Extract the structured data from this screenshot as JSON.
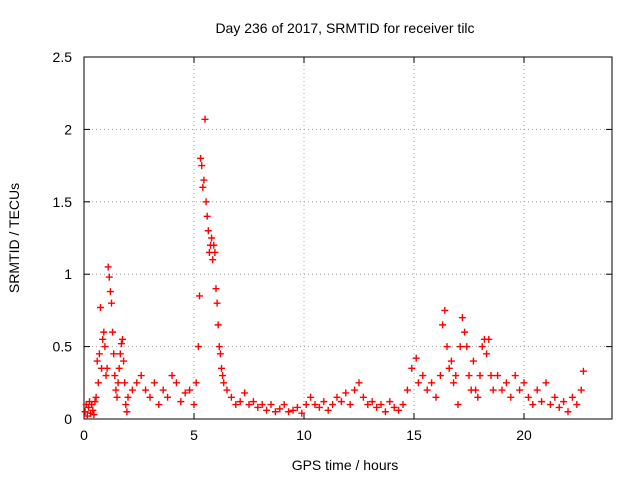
{
  "chart_data": {
    "type": "scatter",
    "title": "Day 236 of 2017, SRMTID for receiver tilc",
    "xlabel": "GPS time / hours",
    "ylabel": "SRMTID / TECUs",
    "xlim": [
      0,
      24
    ],
    "ylim": [
      0,
      2.5
    ],
    "xticks": [
      0,
      5,
      10,
      15,
      20
    ],
    "xtick_labels": [
      "0",
      "5",
      "10",
      "15",
      "20"
    ],
    "yticks": [
      0,
      0.5,
      1,
      1.5,
      2,
      2.5
    ],
    "ytick_labels": [
      "0",
      "0.5",
      "1",
      "1.5",
      "2",
      "2.5"
    ],
    "grid": true,
    "marker": "+",
    "colors": {
      "points": "#ff0000",
      "grid": "#a0a0a0",
      "axes": "#000000"
    },
    "series": [
      {
        "name": "SRMTID",
        "points": [
          [
            0.05,
            0.05
          ],
          [
            0.1,
            0.1
          ],
          [
            0.15,
            0.02
          ],
          [
            0.2,
            0.08
          ],
          [
            0.25,
            0.12
          ],
          [
            0.3,
            0.04
          ],
          [
            0.35,
            0.1
          ],
          [
            0.4,
            0.06
          ],
          [
            0.45,
            0.03
          ],
          [
            0.5,
            0.12
          ],
          [
            0.55,
            0.15
          ],
          [
            0.6,
            0.4
          ],
          [
            0.65,
            0.25
          ],
          [
            0.7,
            0.45
          ],
          [
            0.75,
            0.77
          ],
          [
            0.8,
            0.35
          ],
          [
            0.85,
            0.55
          ],
          [
            0.9,
            0.6
          ],
          [
            0.95,
            0.5
          ],
          [
            1.0,
            0.3
          ],
          [
            1.05,
            0.35
          ],
          [
            1.1,
            1.05
          ],
          [
            1.15,
            0.98
          ],
          [
            1.2,
            0.88
          ],
          [
            1.25,
            0.8
          ],
          [
            1.3,
            0.6
          ],
          [
            1.35,
            0.45
          ],
          [
            1.4,
            0.3
          ],
          [
            1.45,
            0.2
          ],
          [
            1.5,
            0.15
          ],
          [
            1.55,
            0.25
          ],
          [
            1.6,
            0.35
          ],
          [
            1.65,
            0.45
          ],
          [
            1.7,
            0.52
          ],
          [
            1.75,
            0.55
          ],
          [
            1.8,
            0.4
          ],
          [
            1.85,
            0.25
          ],
          [
            1.9,
            0.1
          ],
          [
            1.95,
            0.05
          ],
          [
            2.0,
            0.15
          ],
          [
            2.2,
            0.2
          ],
          [
            2.4,
            0.25
          ],
          [
            2.6,
            0.3
          ],
          [
            2.8,
            0.2
          ],
          [
            3.0,
            0.15
          ],
          [
            3.2,
            0.25
          ],
          [
            3.4,
            0.1
          ],
          [
            3.6,
            0.2
          ],
          [
            3.8,
            0.15
          ],
          [
            4.0,
            0.3
          ],
          [
            4.2,
            0.25
          ],
          [
            4.4,
            0.12
          ],
          [
            4.6,
            0.18
          ],
          [
            4.8,
            0.2
          ],
          [
            5.0,
            0.1
          ],
          [
            5.1,
            0.25
          ],
          [
            5.2,
            0.5
          ],
          [
            5.25,
            0.85
          ],
          [
            5.3,
            1.8
          ],
          [
            5.35,
            1.75
          ],
          [
            5.4,
            1.6
          ],
          [
            5.45,
            1.65
          ],
          [
            5.5,
            2.07
          ],
          [
            5.55,
            1.5
          ],
          [
            5.6,
            1.4
          ],
          [
            5.65,
            1.3
          ],
          [
            5.7,
            1.15
          ],
          [
            5.75,
            1.2
          ],
          [
            5.8,
            1.25
          ],
          [
            5.85,
            1.1
          ],
          [
            5.9,
            1.2
          ],
          [
            5.95,
            1.15
          ],
          [
            6.0,
            0.9
          ],
          [
            6.05,
            0.8
          ],
          [
            6.1,
            0.65
          ],
          [
            6.15,
            0.5
          ],
          [
            6.2,
            0.45
          ],
          [
            6.25,
            0.35
          ],
          [
            6.3,
            0.3
          ],
          [
            6.35,
            0.25
          ],
          [
            6.5,
            0.2
          ],
          [
            6.7,
            0.15
          ],
          [
            6.9,
            0.1
          ],
          [
            7.1,
            0.12
          ],
          [
            7.3,
            0.18
          ],
          [
            7.5,
            0.1
          ],
          [
            7.7,
            0.12
          ],
          [
            7.9,
            0.08
          ],
          [
            8.1,
            0.1
          ],
          [
            8.3,
            0.06
          ],
          [
            8.5,
            0.1
          ],
          [
            8.7,
            0.05
          ],
          [
            8.9,
            0.07
          ],
          [
            9.1,
            0.1
          ],
          [
            9.3,
            0.05
          ],
          [
            9.5,
            0.06
          ],
          [
            9.7,
            0.08
          ],
          [
            9.9,
            0.04
          ],
          [
            10.1,
            0.1
          ],
          [
            10.3,
            0.15
          ],
          [
            10.5,
            0.1
          ],
          [
            10.7,
            0.08
          ],
          [
            10.9,
            0.12
          ],
          [
            11.1,
            0.06
          ],
          [
            11.3,
            0.1
          ],
          [
            11.5,
            0.15
          ],
          [
            11.7,
            0.12
          ],
          [
            11.9,
            0.18
          ],
          [
            12.1,
            0.1
          ],
          [
            12.3,
            0.2
          ],
          [
            12.5,
            0.25
          ],
          [
            12.7,
            0.15
          ],
          [
            12.9,
            0.1
          ],
          [
            13.1,
            0.12
          ],
          [
            13.3,
            0.08
          ],
          [
            13.5,
            0.1
          ],
          [
            13.7,
            0.05
          ],
          [
            13.9,
            0.12
          ],
          [
            14.1,
            0.08
          ],
          [
            14.3,
            0.06
          ],
          [
            14.5,
            0.1
          ],
          [
            14.7,
            0.2
          ],
          [
            14.9,
            0.35
          ],
          [
            15.1,
            0.42
          ],
          [
            15.2,
            0.25
          ],
          [
            15.4,
            0.3
          ],
          [
            15.6,
            0.2
          ],
          [
            15.8,
            0.25
          ],
          [
            16.0,
            0.15
          ],
          [
            16.2,
            0.3
          ],
          [
            16.3,
            0.65
          ],
          [
            16.4,
            0.75
          ],
          [
            16.5,
            0.5
          ],
          [
            16.6,
            0.35
          ],
          [
            16.7,
            0.4
          ],
          [
            16.8,
            0.25
          ],
          [
            16.9,
            0.3
          ],
          [
            17.0,
            0.1
          ],
          [
            17.1,
            0.5
          ],
          [
            17.2,
            0.7
          ],
          [
            17.3,
            0.6
          ],
          [
            17.4,
            0.5
          ],
          [
            17.5,
            0.3
          ],
          [
            17.6,
            0.2
          ],
          [
            17.7,
            0.4
          ],
          [
            17.8,
            0.2
          ],
          [
            17.9,
            0.15
          ],
          [
            18.0,
            0.3
          ],
          [
            18.1,
            0.5
          ],
          [
            18.2,
            0.55
          ],
          [
            18.3,
            0.45
          ],
          [
            18.4,
            0.55
          ],
          [
            18.5,
            0.3
          ],
          [
            18.6,
            0.2
          ],
          [
            18.8,
            0.3
          ],
          [
            19.0,
            0.2
          ],
          [
            19.2,
            0.25
          ],
          [
            19.4,
            0.15
          ],
          [
            19.6,
            0.3
          ],
          [
            19.8,
            0.2
          ],
          [
            20.0,
            0.25
          ],
          [
            20.2,
            0.15
          ],
          [
            20.4,
            0.1
          ],
          [
            20.6,
            0.2
          ],
          [
            20.8,
            0.12
          ],
          [
            21.0,
            0.25
          ],
          [
            21.2,
            0.1
          ],
          [
            21.4,
            0.15
          ],
          [
            21.6,
            0.08
          ],
          [
            21.8,
            0.12
          ],
          [
            22.0,
            0.05
          ],
          [
            22.2,
            0.15
          ],
          [
            22.4,
            0.1
          ],
          [
            22.6,
            0.2
          ],
          [
            22.7,
            0.33
          ]
        ]
      }
    ]
  }
}
